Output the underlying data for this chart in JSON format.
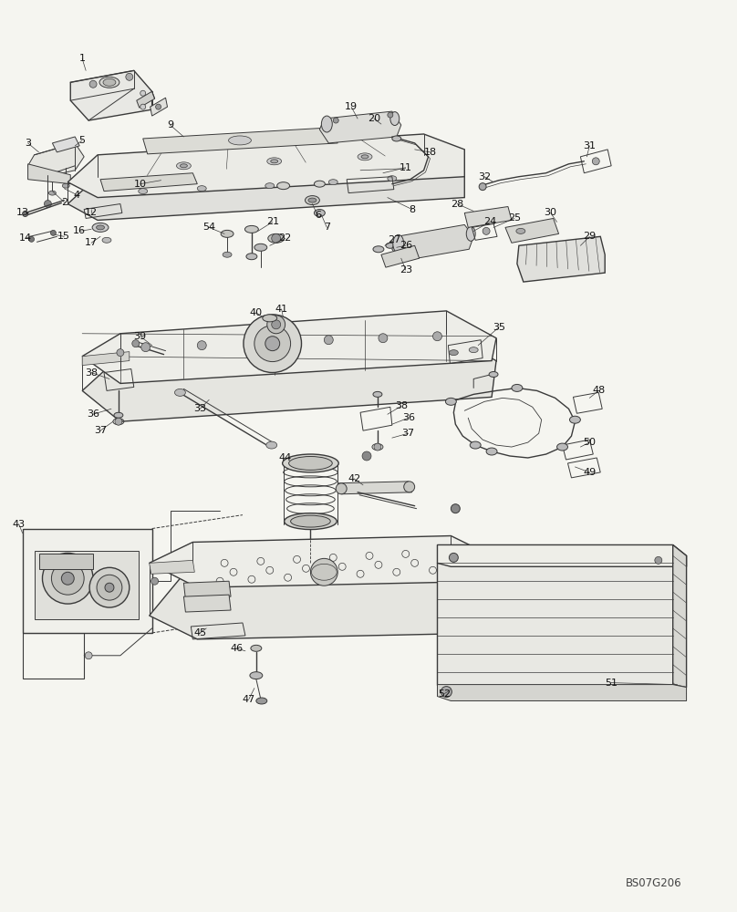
{
  "watermark": "BS07G206",
  "bg": "#f5f5f0",
  "lc": "#3a3a3a",
  "figsize": [
    8.08,
    10.0
  ],
  "dpi": 100
}
